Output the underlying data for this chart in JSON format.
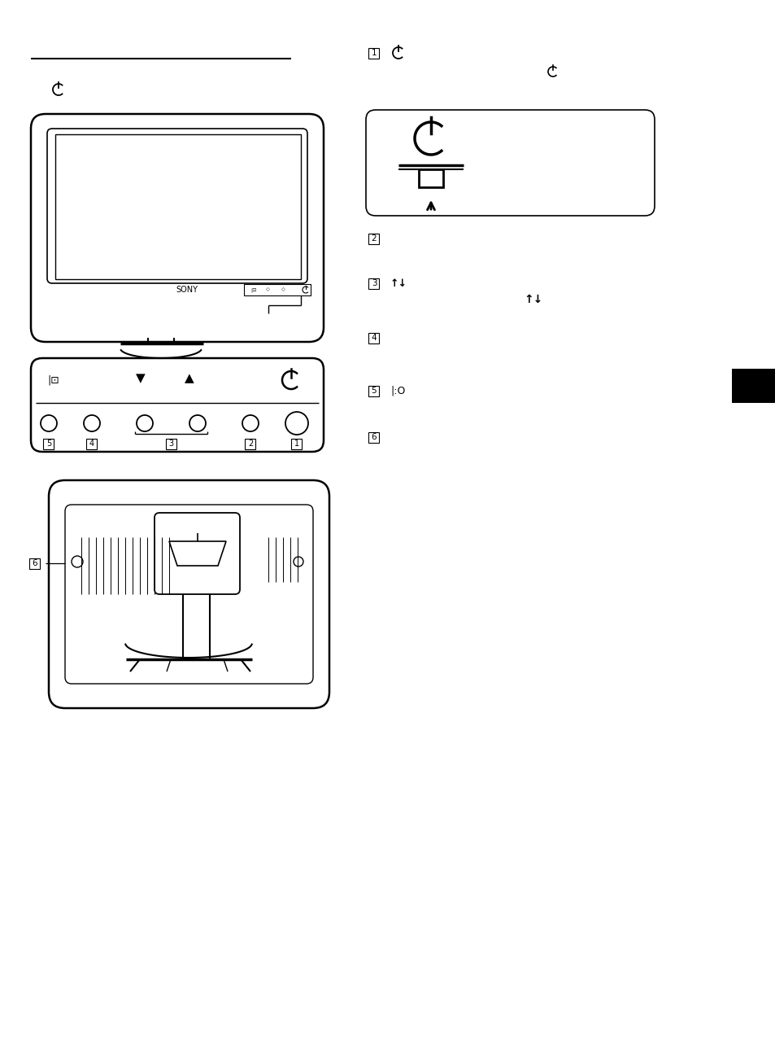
{
  "bg_color": "#ffffff",
  "page_width": 9.54,
  "page_height": 12.74,
  "dpi": 100
}
